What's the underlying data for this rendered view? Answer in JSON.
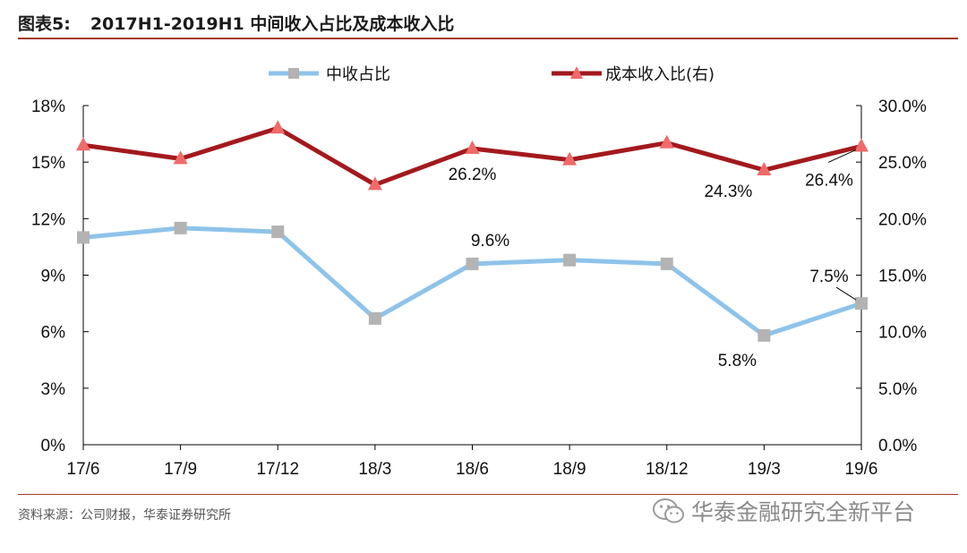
{
  "header": {
    "figure_label": "图表5:",
    "title": "2017H1-2019H1 中间收入占比及成本收入比"
  },
  "footer": {
    "source": "资料来源：公司财报，华泰证券研究所",
    "watermark": "华泰金融研究全新平台"
  },
  "chart_data": {
    "type": "line",
    "categories": [
      "17/6",
      "17/9",
      "17/12",
      "18/3",
      "18/6",
      "18/9",
      "18/12",
      "19/3",
      "19/6"
    ],
    "series": [
      {
        "name": "中收占比",
        "axis": "left",
        "color": "#8ec3ea",
        "marker": "square",
        "marker_color": "#b3b3b3",
        "values": [
          11.0,
          11.5,
          11.3,
          6.7,
          9.6,
          9.8,
          9.6,
          5.8,
          7.5
        ]
      },
      {
        "name": "成本收入比(右)",
        "axis": "right",
        "color": "#a3191d",
        "marker": "triangle",
        "marker_color": "#f06a6a",
        "values": [
          26.5,
          25.3,
          28.0,
          23.0,
          26.2,
          25.2,
          26.7,
          24.3,
          26.4
        ]
      }
    ],
    "y_left": {
      "ylim": [
        0,
        18
      ],
      "ticks": [
        "0%",
        "3%",
        "6%",
        "9%",
        "12%",
        "15%",
        "18%"
      ]
    },
    "y_right": {
      "ylim": [
        0,
        30
      ],
      "ticks": [
        "0.0%",
        "5.0%",
        "10.0%",
        "15.0%",
        "20.0%",
        "25.0%",
        "30.0%"
      ]
    },
    "grid": false,
    "legend": "top",
    "annotations": [
      {
        "text": "26.2%",
        "series": 1,
        "index": 4
      },
      {
        "text": "24.3%",
        "series": 1,
        "index": 7
      },
      {
        "text": "26.4%",
        "series": 1,
        "index": 8
      },
      {
        "text": "9.6%",
        "series": 0,
        "index": 4
      },
      {
        "text": "5.8%",
        "series": 0,
        "index": 7
      },
      {
        "text": "7.5%",
        "series": 0,
        "index": 8
      }
    ]
  }
}
